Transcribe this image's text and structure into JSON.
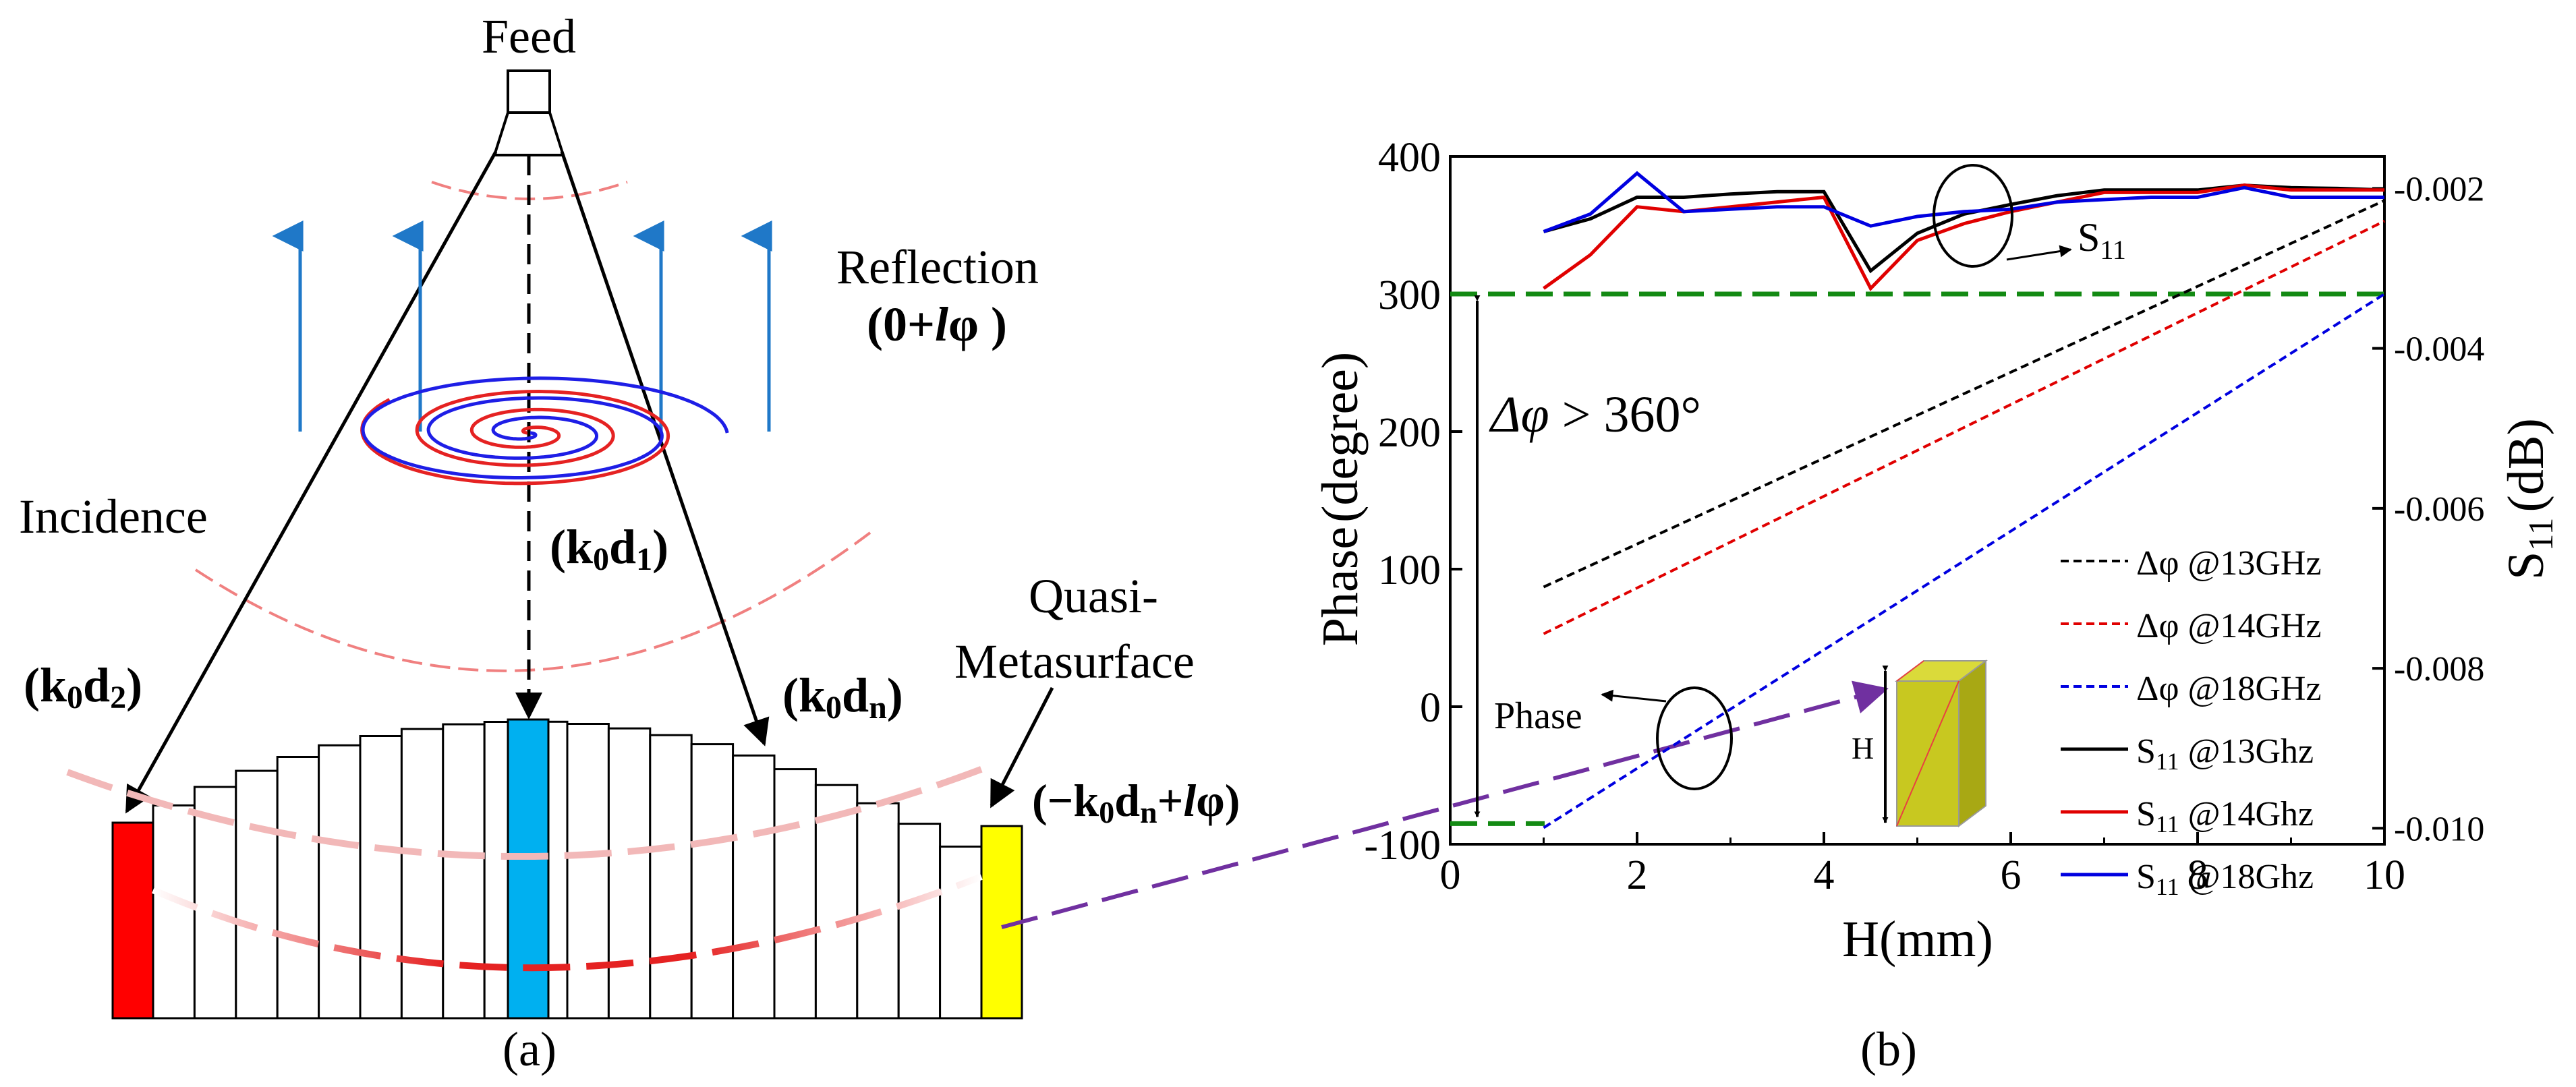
{
  "panel_a": {
    "caption": "(a)",
    "feed_label": "Feed",
    "reflection_label": "Reflection",
    "reflection_phase": "(0+lφ )",
    "incidence_label": "Incidence",
    "path_center": "(k0d1)",
    "path_left": "(k0d2)",
    "path_right": "(k0dn)",
    "quasi_label_line1": "Quasi-",
    "quasi_label_line2": "Metasurface",
    "edge_phase": "(−k0dn+lφ)",
    "colors": {
      "left_cell": "#ff0000",
      "center_cell": "#00b0f0",
      "right_cell": "#ffff00",
      "arrow_blue": "#1f78c8",
      "spiral_red": "#e52222",
      "spiral_blue": "#1e1ee6"
    },
    "cell_heights": [
      0,
      12,
      22,
      30,
      38,
      44,
      48,
      51,
      53,
      54,
      53,
      51,
      48,
      44,
      38,
      30,
      22,
      12,
      0,
      0
    ]
  },
  "panel_b": {
    "caption": "(b)",
    "delta_phi_annotation": "Δφ > 360°",
    "phase_marker": "Phase",
    "s11_marker": "S",
    "s11_marker_sub": "11",
    "inset_dim": "H",
    "colors": {
      "guide_green": "#138a13",
      "purple_arrow": "#7030a0",
      "inset_face": "#c8c820"
    }
  },
  "chart_data": {
    "type": "line",
    "xlabel": "H(mm)",
    "ylabel_left": "Phase (degree)",
    "ylabel_right": "S11 (dB)",
    "xlim": [
      0,
      10
    ],
    "ylim_left": [
      -100,
      400
    ],
    "ylim_right": [
      -0.0016,
      -0.0102
    ],
    "x_ticks": [
      "0",
      "2",
      "4",
      "6",
      "8",
      "10"
    ],
    "y_ticks_left": [
      "-100",
      "0",
      "100",
      "200",
      "300",
      "400"
    ],
    "y_ticks_right": [
      "-0.002",
      "-0.004",
      "-0.006",
      "-0.008",
      "-0.010"
    ],
    "y_ticks_right_values": [
      -0.002,
      -0.004,
      -0.006,
      -0.008,
      -0.01
    ],
    "guides": [
      300,
      -85
    ],
    "series": [
      {
        "name": "Δφ @13GHz",
        "axis": "left",
        "style": "dashed",
        "color": "#000000",
        "x": [
          1,
          10
        ],
        "y": [
          87,
          368
        ]
      },
      {
        "name": "Δφ @14GHz",
        "axis": "left",
        "style": "dashed",
        "color": "#e00000",
        "x": [
          1,
          10
        ],
        "y": [
          53,
          353
        ]
      },
      {
        "name": "Δφ @18GHz",
        "axis": "left",
        "style": "dashed",
        "color": "#0000e0",
        "x": [
          1,
          10
        ],
        "y": [
          -88,
          300
        ]
      },
      {
        "name": "S11 @13Ghz",
        "axis": "right",
        "style": "solid",
        "color": "#000000",
        "x": [
          1,
          1.5,
          2,
          2.5,
          3,
          3.5,
          4,
          4.5,
          5,
          5.5,
          6,
          6.5,
          7,
          7.5,
          8,
          8.5,
          9,
          9.5,
          10
        ],
        "y": [
          -0.00254,
          -0.00238,
          -0.00211,
          -0.00211,
          -0.00207,
          -0.00204,
          -0.00204,
          -0.00303,
          -0.00256,
          -0.00232,
          -0.0022,
          -0.00209,
          -0.00202,
          -0.00202,
          -0.00202,
          -0.00196,
          -0.00199,
          -0.002,
          -0.00202
        ]
      },
      {
        "name": "S11 @14Ghz",
        "axis": "right",
        "style": "solid",
        "color": "#e00000",
        "x": [
          1,
          1.5,
          2,
          2.5,
          3,
          3.5,
          4,
          4.5,
          5,
          5.5,
          6,
          6.5,
          7,
          7.5,
          8,
          8.5,
          9,
          9.5,
          10
        ],
        "y": [
          -0.00325,
          -0.00283,
          -0.00223,
          -0.00229,
          -0.00223,
          -0.00217,
          -0.00211,
          -0.00325,
          -0.00265,
          -0.00244,
          -0.00229,
          -0.00217,
          -0.00205,
          -0.00205,
          -0.00205,
          -0.00196,
          -0.00202,
          -0.00202,
          -0.00202
        ]
      },
      {
        "name": "S11 @18Ghz",
        "axis": "right",
        "style": "solid",
        "color": "#0000e0",
        "x": [
          1,
          1.5,
          2,
          2.5,
          3,
          3.5,
          4,
          4.5,
          5,
          5.5,
          6,
          6.5,
          7,
          7.5,
          8,
          8.5,
          9,
          9.5,
          10
        ],
        "y": [
          -0.00254,
          -0.00232,
          -0.00181,
          -0.00229,
          -0.00226,
          -0.00223,
          -0.00223,
          -0.00247,
          -0.00235,
          -0.00229,
          -0.00226,
          -0.00217,
          -0.00214,
          -0.00211,
          -0.00211,
          -0.00199,
          -0.00211,
          -0.00211,
          -0.00211
        ]
      }
    ],
    "legend_labels": [
      "Δφ @13GHz",
      "Δφ @14GHz",
      "Δφ @18GHz",
      "S",
      "11",
      " @13Ghz",
      " @14Ghz",
      " @18Ghz"
    ]
  }
}
